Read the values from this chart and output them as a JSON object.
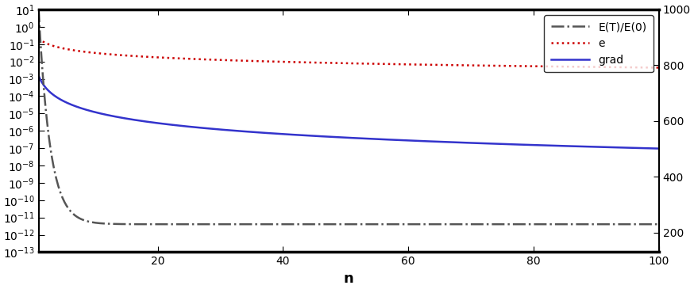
{
  "xlabel": "n",
  "xlim": [
    1,
    100
  ],
  "ylim_left": [
    1e-13,
    10
  ],
  "ylim_right": [
    130,
    1000
  ],
  "right_ticks": [
    200,
    400,
    600,
    800,
    1000
  ],
  "x_ticks": [
    20,
    40,
    60,
    80,
    100
  ],
  "grad_coeff": 0.0015,
  "grad_power": 2.1,
  "e_coeff": 0.22,
  "e_power": 0.85,
  "energy_converge": 230.0,
  "energy_decay_rate": 0.55,
  "line_colors": {
    "grad": "#3333cc",
    "e": "#cc0000",
    "energy": "#555555"
  },
  "legend_labels": [
    "E(T)/E(0)",
    "e",
    "grad"
  ],
  "legend_colors": [
    "#555555",
    "#cc0000",
    "#3333cc"
  ],
  "legend_styles": [
    "-.",
    ":",
    "-"
  ]
}
